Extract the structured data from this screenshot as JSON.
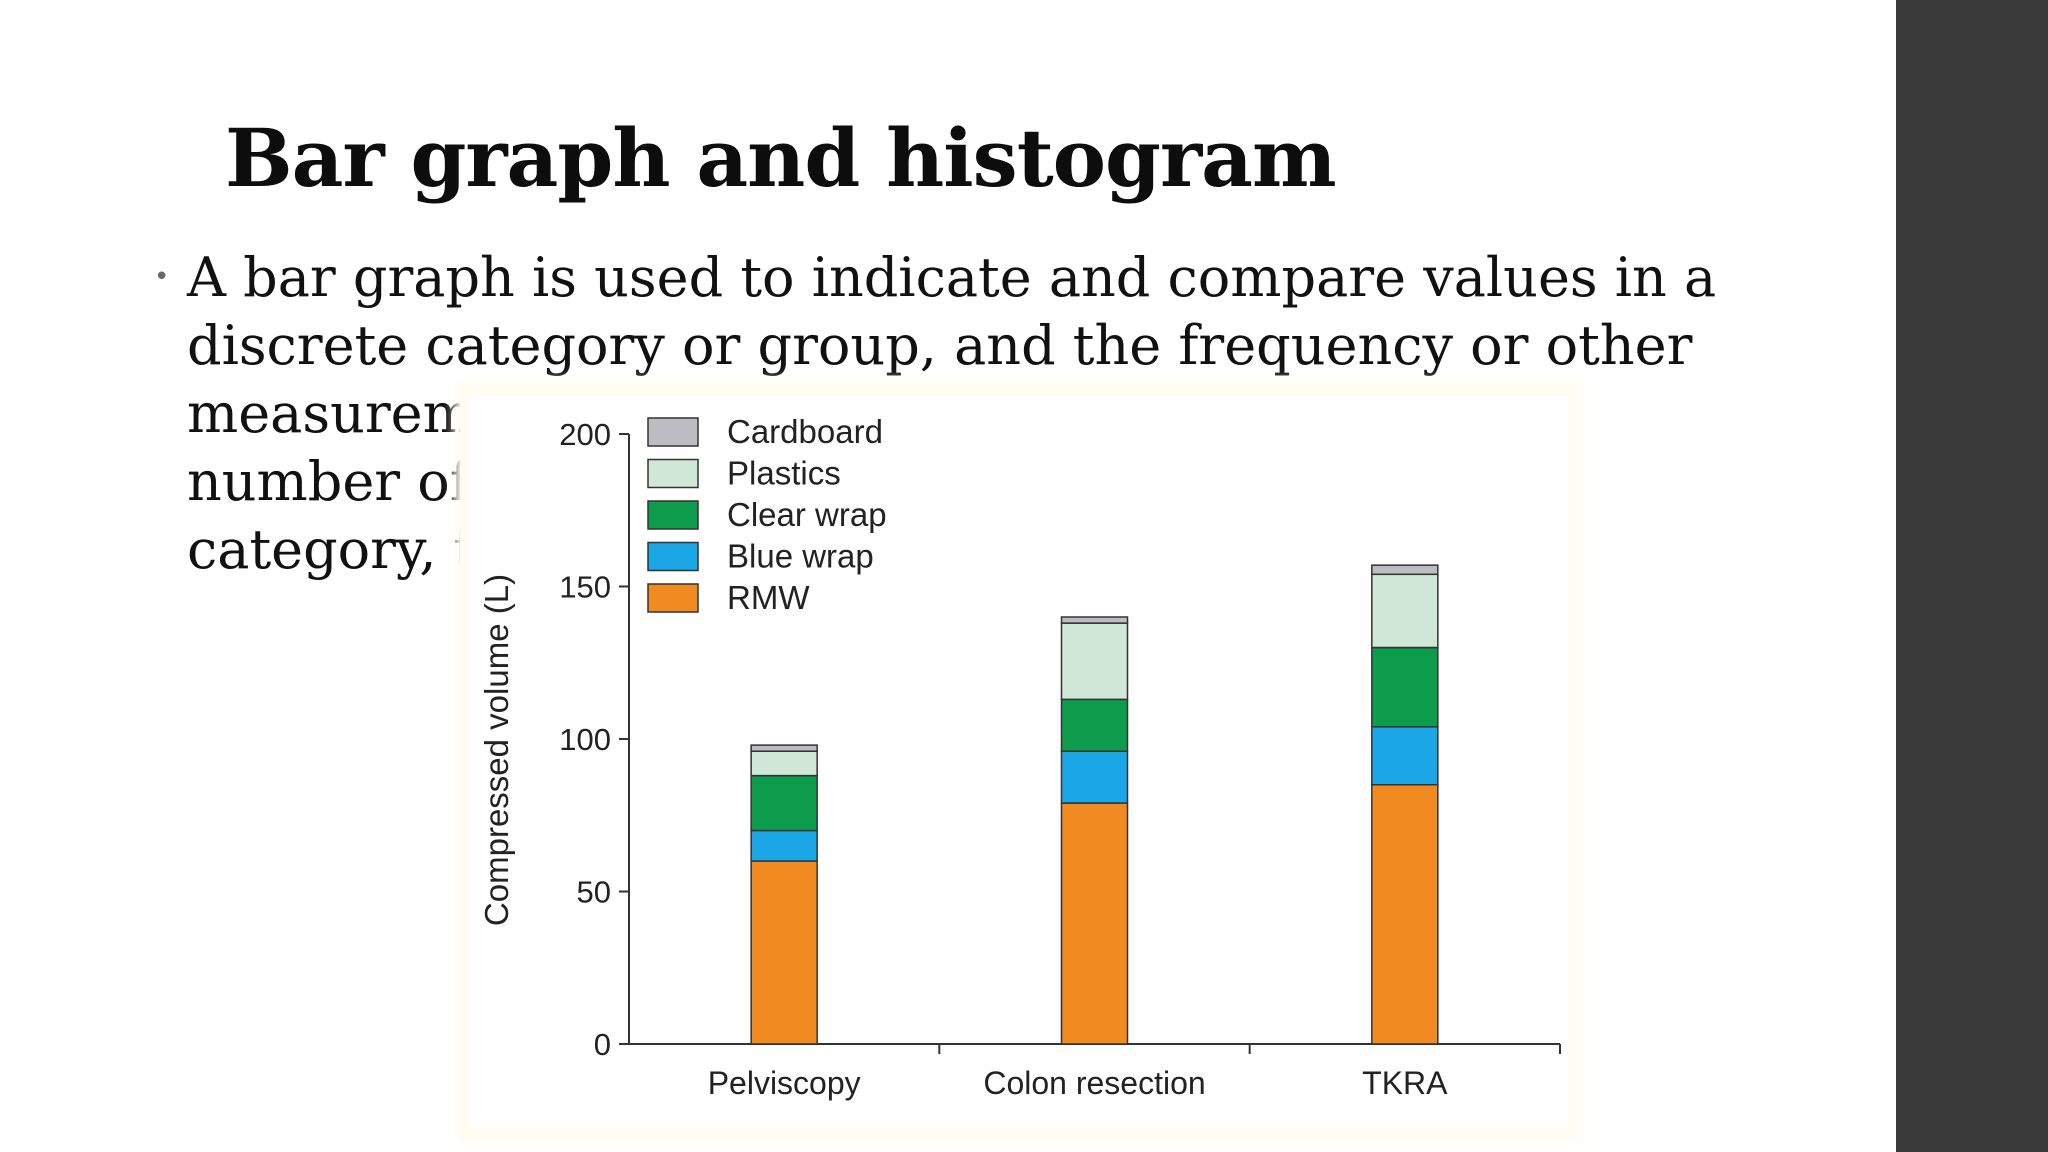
{
  "slide": {
    "title": "Bar graph and histogram",
    "bullet": "•",
    "paragraph_lines": [
      "A bar graph is used to indicate and compare values in a",
      "discrete category or group, and the frequency or other",
      "measuremon the",
      "number of each",
      "category, tally."
    ]
  },
  "chart_data": {
    "type": "bar",
    "stacked": true,
    "categories": [
      "Pelviscopy",
      "Colon resection",
      "TKRA"
    ],
    "ylabel": "Compressed volume (L)",
    "xlabel": "",
    "ylim": [
      0,
      200
    ],
    "yticks": [
      0,
      50,
      100,
      150,
      200
    ],
    "legend_position": "top-left",
    "grid": false,
    "series": [
      {
        "name": "RMW",
        "color": "#f28a22",
        "values": [
          60,
          79,
          85
        ]
      },
      {
        "name": "Blue wrap",
        "color": "#1ba6e6",
        "values": [
          10,
          17,
          19
        ]
      },
      {
        "name": "Clear wrap",
        "color": "#0c9c4c",
        "values": [
          18,
          17,
          26
        ]
      },
      {
        "name": "Plastics",
        "color": "#cfe7d6",
        "values": [
          8,
          25,
          24
        ]
      },
      {
        "name": "Cardboard",
        "color": "#bdbcc2",
        "values": [
          2,
          2,
          3
        ]
      }
    ],
    "legend_order": [
      "Cardboard",
      "Plastics",
      "Clear wrap",
      "Blue wrap",
      "RMW"
    ]
  }
}
